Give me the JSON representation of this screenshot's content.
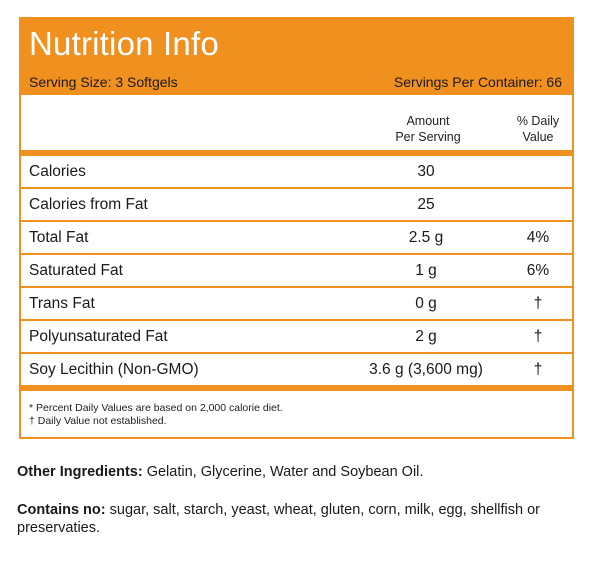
{
  "panel": {
    "title": "Nutrition Info",
    "serving_size": "Serving Size:  3 Softgels",
    "servings_per_container": "Servings Per Container: 66",
    "columns": {
      "amount_line1": "Amount",
      "amount_line2": "Per Serving",
      "dv_line1": "% Daily",
      "dv_line2": "Value"
    },
    "rows": [
      {
        "name": "Calories",
        "amount": "30",
        "dv": ""
      },
      {
        "name": "Calories from Fat",
        "amount": "25",
        "dv": ""
      },
      {
        "name": "Total Fat",
        "amount": "2.5 g",
        "dv": "4%"
      },
      {
        "name": "Saturated Fat",
        "amount": "1 g",
        "dv": "6%"
      },
      {
        "name": "Trans Fat",
        "amount": "0 g",
        "dv": "†"
      },
      {
        "name": "Polyunsaturated Fat",
        "amount": "2 g",
        "dv": "†"
      },
      {
        "name": "Soy Lecithin (Non-GMO)",
        "amount": "3.6 g (3,600 mg)",
        "dv": "†"
      }
    ],
    "footnotes": [
      "* Percent Daily Values are based on 2,000 calorie diet.",
      "† Daily Value not established."
    ],
    "accent_color": "#f0901e"
  },
  "other_ingredients": {
    "label": "Other Ingredients:",
    "text": " Gelatin, Glycerine, Water and Soybean Oil."
  },
  "contains_no": {
    "label": "Contains no:",
    "text": " sugar, salt, starch, yeast, wheat, gluten, corn, milk, egg, shellfish or preservaties."
  }
}
